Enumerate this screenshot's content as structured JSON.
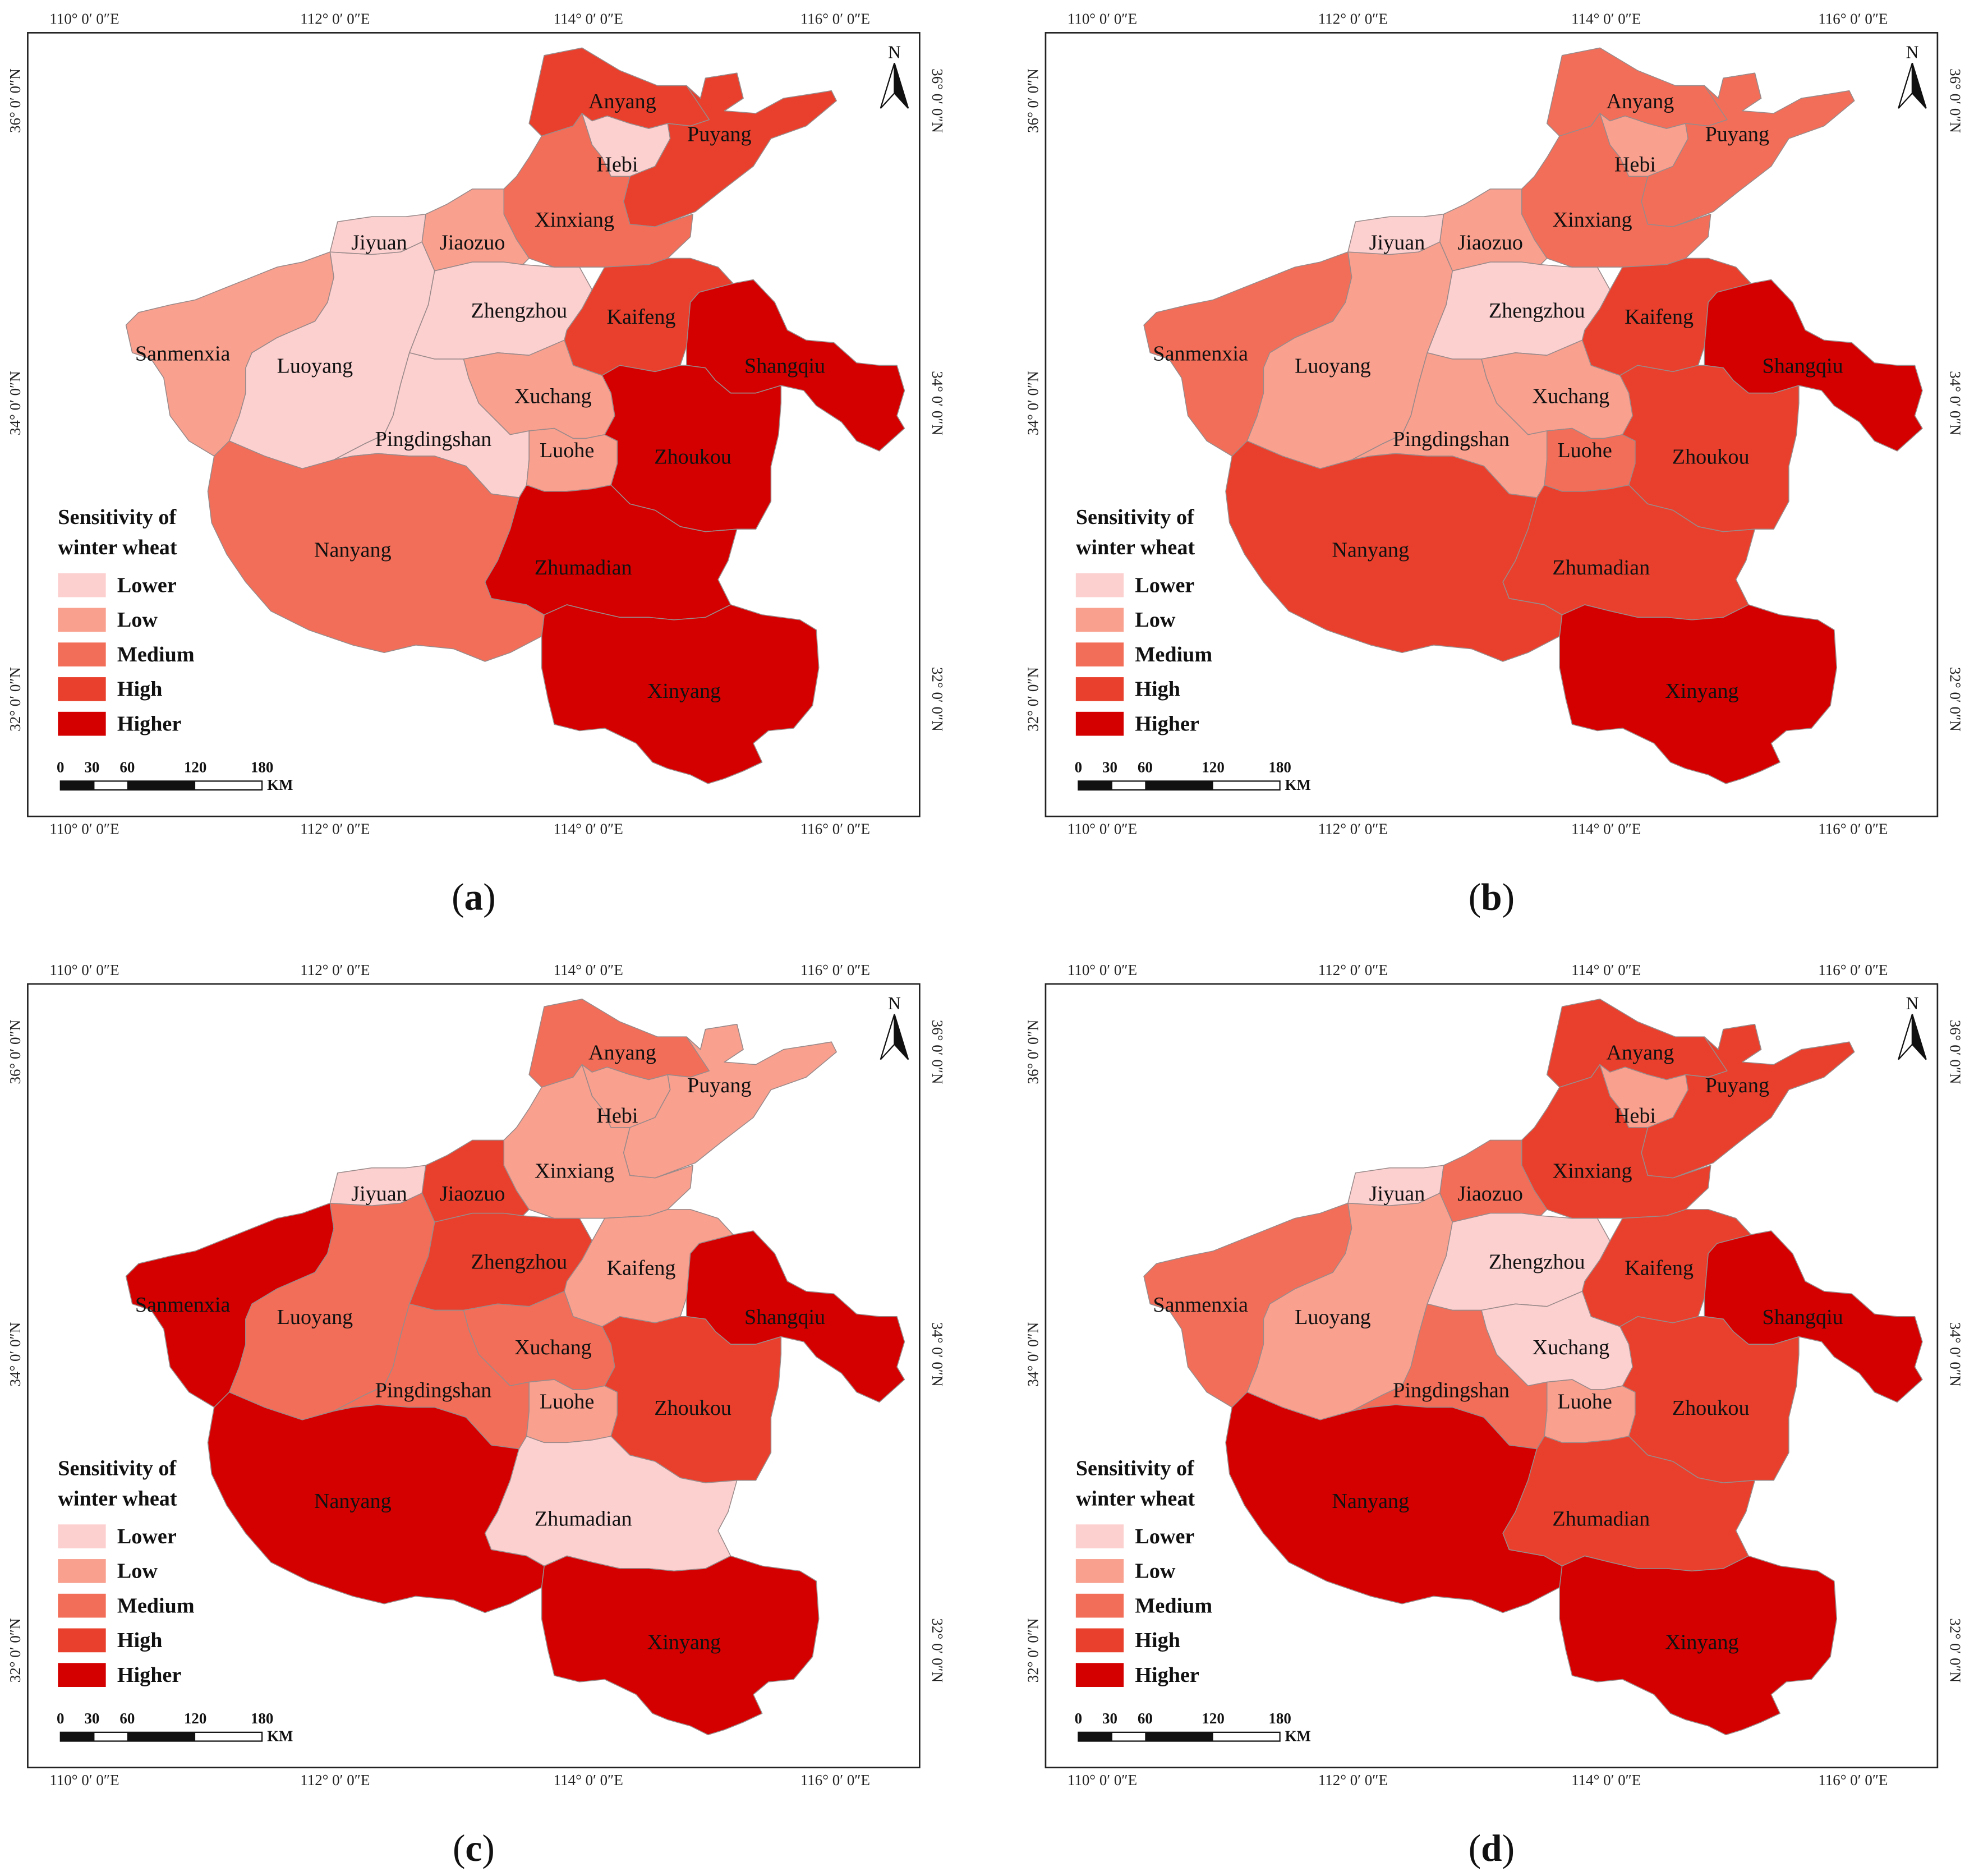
{
  "panels": [
    {
      "caption": "a",
      "levels": {
        "Anyang": "High",
        "Puyang": "High",
        "Hebi": "Lower",
        "Xinxiang": "Medium",
        "Jiyuan": "Lower",
        "Jiaozuo": "Low",
        "Zhengzhou": "Lower",
        "Kaifeng": "High",
        "Shangqiu": "Higher",
        "Sanmenxia": "Low",
        "Luoyang": "Lower",
        "Xuchang": "Low",
        "Pingdingshan": "Lower",
        "Luohe": "Low",
        "Zhoukou": "Higher",
        "Nanyang": "Medium",
        "Zhumadian": "Higher",
        "Xinyang": "Higher"
      }
    },
    {
      "caption": "b",
      "levels": {
        "Anyang": "Medium",
        "Puyang": "Medium",
        "Hebi": "Low",
        "Xinxiang": "Medium",
        "Jiyuan": "Lower",
        "Jiaozuo": "Low",
        "Zhengzhou": "Lower",
        "Kaifeng": "High",
        "Shangqiu": "Higher",
        "Sanmenxia": "Medium",
        "Luoyang": "Low",
        "Xuchang": "Low",
        "Pingdingshan": "Low",
        "Luohe": "Medium",
        "Zhoukou": "High",
        "Nanyang": "High",
        "Zhumadian": "High",
        "Xinyang": "Higher"
      }
    },
    {
      "caption": "c",
      "levels": {
        "Anyang": "Medium",
        "Puyang": "Low",
        "Hebi": "Low",
        "Xinxiang": "Low",
        "Jiyuan": "Lower",
        "Jiaozuo": "High",
        "Zhengzhou": "High",
        "Kaifeng": "Low",
        "Shangqiu": "Higher",
        "Sanmenxia": "Higher",
        "Luoyang": "Medium",
        "Xuchang": "Medium",
        "Pingdingshan": "Medium",
        "Luohe": "Low",
        "Zhoukou": "High",
        "Nanyang": "Higher",
        "Zhumadian": "Lower",
        "Xinyang": "Higher"
      }
    },
    {
      "caption": "d",
      "levels": {
        "Anyang": "High",
        "Puyang": "High",
        "Hebi": "Low",
        "Xinxiang": "High",
        "Jiyuan": "Lower",
        "Jiaozuo": "Medium",
        "Zhengzhou": "Lower",
        "Kaifeng": "High",
        "Shangqiu": "Higher",
        "Sanmenxia": "Medium",
        "Luoyang": "Low",
        "Xuchang": "Lower",
        "Pingdingshan": "Medium",
        "Luohe": "Low",
        "Zhoukou": "High",
        "Nanyang": "Higher",
        "Zhumadian": "High",
        "Xinyang": "Higher"
      }
    }
  ],
  "legend": {
    "title_line1": "Sensitivity of",
    "title_line2": "winter wheat",
    "classes": [
      {
        "label": "Lower",
        "color": "#fdd0d0"
      },
      {
        "label": "Low",
        "color": "#f9a08f"
      },
      {
        "label": "Medium",
        "color": "#f36e58"
      },
      {
        "label": "High",
        "color": "#e8402c"
      },
      {
        "label": "Higher",
        "color": "#d40000"
      }
    ]
  },
  "north_arrow": "N",
  "scale_bar": {
    "ticks": [
      "0",
      "30",
      "60",
      "120",
      "180"
    ],
    "unit": "KM"
  },
  "graticule": {
    "lon_labels": [
      "110° 0′ 0″E",
      "112° 0′ 0″E",
      "114° 0′ 0″E",
      "116° 0′ 0″E"
    ],
    "lat_labels": [
      "36° 0′ 0″N",
      "34° 0′ 0″N",
      "32° 0′ 0″N"
    ]
  },
  "colors": {
    "boundary": "#9a8a8a",
    "frame": "#222222",
    "water": "#ffffff"
  }
}
